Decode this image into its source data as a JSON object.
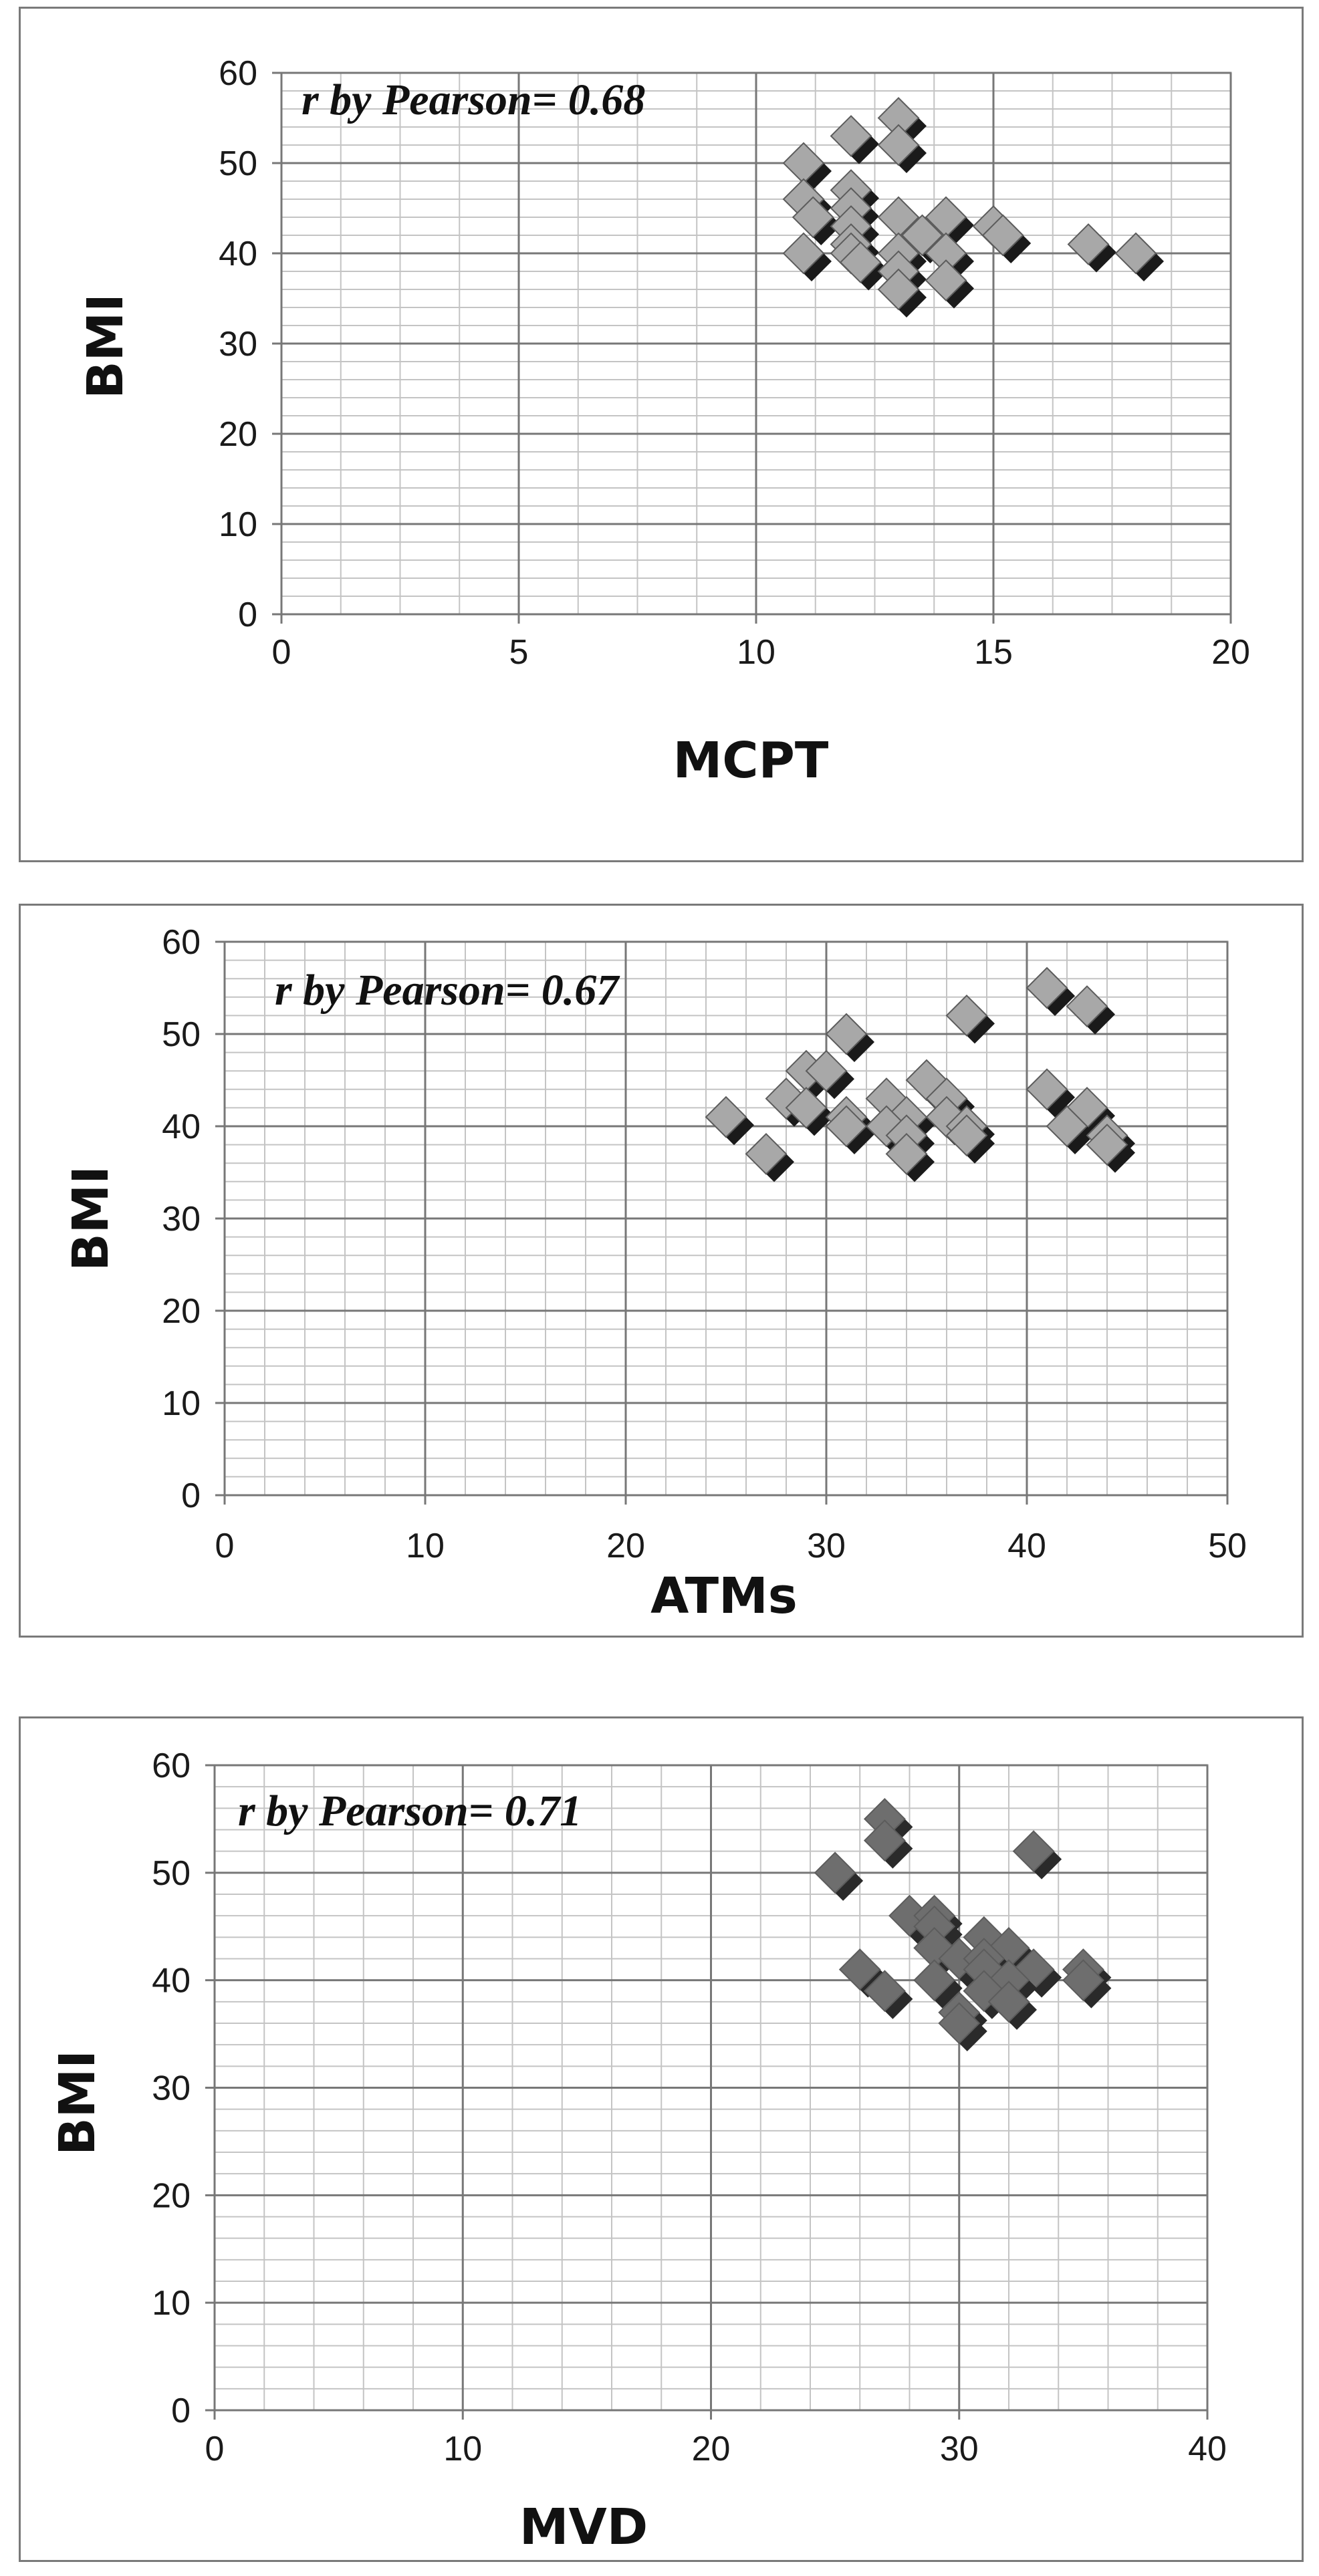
{
  "chart_data": [
    {
      "type": "scatter",
      "title": "",
      "annotation": "r by Pearson= 0.68",
      "xlabel": "MCPT",
      "ylabel": "BMI",
      "xlim": [
        0,
        20
      ],
      "ylim": [
        0,
        60
      ],
      "xticks": [
        "0",
        "5",
        "10",
        "15",
        "20"
      ],
      "yticks": [
        "0",
        "10",
        "20",
        "30",
        "40",
        "50",
        "60"
      ],
      "grid": true,
      "legend": "none",
      "marker": "diamond",
      "marker_color": "#a8a8a8",
      "shadow_color": "#1a1a1a",
      "points": [
        {
          "x": 13,
          "y": 55
        },
        {
          "x": 12,
          "y": 53
        },
        {
          "x": 13,
          "y": 52
        },
        {
          "x": 11,
          "y": 50
        },
        {
          "x": 12,
          "y": 47
        },
        {
          "x": 11,
          "y": 46
        },
        {
          "x": 12,
          "y": 45
        },
        {
          "x": 11.2,
          "y": 44
        },
        {
          "x": 13,
          "y": 44
        },
        {
          "x": 14,
          "y": 44
        },
        {
          "x": 12,
          "y": 43
        },
        {
          "x": 15,
          "y": 43
        },
        {
          "x": 13.5,
          "y": 42
        },
        {
          "x": 15.2,
          "y": 42
        },
        {
          "x": 12,
          "y": 41
        },
        {
          "x": 17,
          "y": 41
        },
        {
          "x": 11,
          "y": 40
        },
        {
          "x": 12,
          "y": 40
        },
        {
          "x": 13,
          "y": 40
        },
        {
          "x": 14,
          "y": 40
        },
        {
          "x": 18,
          "y": 40
        },
        {
          "x": 12.2,
          "y": 39
        },
        {
          "x": 13,
          "y": 38
        },
        {
          "x": 14,
          "y": 37
        },
        {
          "x": 13,
          "y": 36
        }
      ]
    },
    {
      "type": "scatter",
      "title": "",
      "annotation": "r by Pearson= 0.67",
      "xlabel": "ATMs",
      "ylabel": "BMI",
      "xlim": [
        0,
        50
      ],
      "ylim": [
        0,
        60
      ],
      "xticks": [
        "0",
        "10",
        "20",
        "30",
        "40",
        "50"
      ],
      "yticks": [
        "0",
        "10",
        "20",
        "30",
        "40",
        "50",
        "60"
      ],
      "grid": true,
      "legend": "none",
      "marker": "diamond",
      "marker_color": "#a8a8a8",
      "shadow_color": "#1a1a1a",
      "points": [
        {
          "x": 41,
          "y": 55
        },
        {
          "x": 43,
          "y": 53
        },
        {
          "x": 37,
          "y": 52
        },
        {
          "x": 31,
          "y": 50
        },
        {
          "x": 29,
          "y": 46
        },
        {
          "x": 30,
          "y": 46
        },
        {
          "x": 35,
          "y": 45
        },
        {
          "x": 41,
          "y": 44
        },
        {
          "x": 28,
          "y": 43
        },
        {
          "x": 33,
          "y": 43
        },
        {
          "x": 36,
          "y": 43
        },
        {
          "x": 29,
          "y": 42
        },
        {
          "x": 43,
          "y": 42
        },
        {
          "x": 25,
          "y": 41
        },
        {
          "x": 31,
          "y": 41
        },
        {
          "x": 34,
          "y": 41
        },
        {
          "x": 36,
          "y": 41
        },
        {
          "x": 31,
          "y": 40
        },
        {
          "x": 33,
          "y": 40
        },
        {
          "x": 37,
          "y": 40
        },
        {
          "x": 42,
          "y": 40
        },
        {
          "x": 34,
          "y": 39
        },
        {
          "x": 37,
          "y": 39
        },
        {
          "x": 44,
          "y": 39
        },
        {
          "x": 27,
          "y": 37
        },
        {
          "x": 34,
          "y": 37
        },
        {
          "x": 44,
          "y": 38
        }
      ]
    },
    {
      "type": "scatter",
      "title": "",
      "annotation": "r by Pearson= 0.71",
      "xlabel": "MVD",
      "ylabel": "BMI",
      "xlim": [
        0,
        40
      ],
      "ylim": [
        0,
        60
      ],
      "xticks": [
        "0",
        "10",
        "20",
        "30",
        "40"
      ],
      "yticks": [
        "0",
        "10",
        "20",
        "30",
        "40",
        "50",
        "60"
      ],
      "grid": true,
      "legend": "none",
      "marker": "diamond",
      "marker_color": "#6e6e6e",
      "shadow_color": "#2a2a2a",
      "points": [
        {
          "x": 27,
          "y": 55
        },
        {
          "x": 27,
          "y": 53
        },
        {
          "x": 33,
          "y": 52
        },
        {
          "x": 25,
          "y": 50
        },
        {
          "x": 28,
          "y": 46
        },
        {
          "x": 29,
          "y": 46
        },
        {
          "x": 29,
          "y": 45
        },
        {
          "x": 31,
          "y": 44
        },
        {
          "x": 29,
          "y": 43
        },
        {
          "x": 32,
          "y": 43
        },
        {
          "x": 30,
          "y": 42
        },
        {
          "x": 31,
          "y": 42
        },
        {
          "x": 26,
          "y": 41
        },
        {
          "x": 31,
          "y": 41
        },
        {
          "x": 33,
          "y": 41
        },
        {
          "x": 35,
          "y": 41
        },
        {
          "x": 29,
          "y": 40
        },
        {
          "x": 32,
          "y": 40
        },
        {
          "x": 35,
          "y": 40
        },
        {
          "x": 27,
          "y": 39
        },
        {
          "x": 31,
          "y": 39
        },
        {
          "x": 32,
          "y": 38
        },
        {
          "x": 30,
          "y": 37
        },
        {
          "x": 30,
          "y": 36
        }
      ]
    }
  ]
}
